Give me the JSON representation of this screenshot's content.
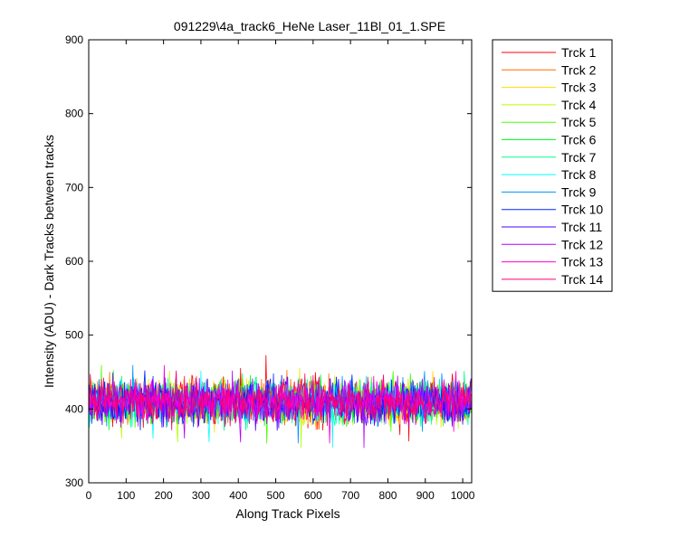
{
  "chart_data": {
    "type": "line",
    "title": "091229\\4a_track6_HeNe Laser_11Bl_01_1.SPE",
    "xlabel": "Along Track Pixels",
    "ylabel": "Intensity (ADU) - Dark Tracks between tracks",
    "xlim": [
      0,
      1024
    ],
    "ylim": [
      300,
      900
    ],
    "xticks": [
      0,
      100,
      200,
      300,
      400,
      500,
      600,
      700,
      800,
      900,
      1000
    ],
    "yticks": [
      300,
      400,
      500,
      600,
      700,
      800,
      900
    ],
    "grid": false,
    "legend_position": "outside-right",
    "noise": {
      "mean": 410,
      "band_low": 380,
      "band_high": 445,
      "n_points": 1024
    },
    "series": [
      {
        "name": "Trck 1",
        "color": "#ff0000"
      },
      {
        "name": "Trck 2",
        "color": "#ff6d00"
      },
      {
        "name": "Trck 3",
        "color": "#ffdb00"
      },
      {
        "name": "Trck 4",
        "color": "#b6ff00"
      },
      {
        "name": "Trck 5",
        "color": "#49ff00"
      },
      {
        "name": "Trck 6",
        "color": "#00ff24"
      },
      {
        "name": "Trck 7",
        "color": "#00ff92"
      },
      {
        "name": "Trck 8",
        "color": "#00ffff"
      },
      {
        "name": "Trck 9",
        "color": "#0092ff"
      },
      {
        "name": "Trck 10",
        "color": "#0024ff"
      },
      {
        "name": "Trck 11",
        "color": "#4900ff"
      },
      {
        "name": "Trck 12",
        "color": "#b600ff"
      },
      {
        "name": "Trck 13",
        "color": "#ff00db"
      },
      {
        "name": "Trck 14",
        "color": "#ff006d"
      }
    ]
  }
}
